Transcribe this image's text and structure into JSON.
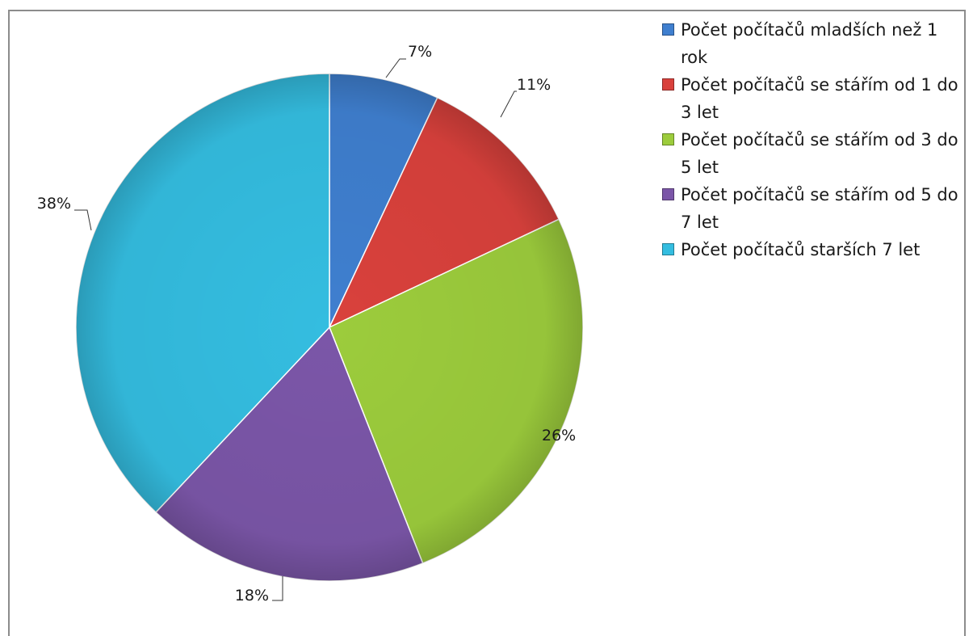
{
  "chart_data": {
    "type": "pie",
    "title": "",
    "legend_position": "top-right",
    "slices": [
      {
        "label": "Počet počítačů mladších než 1 rok",
        "value": 7,
        "data_label": "7%",
        "color": "#3f7fcf"
      },
      {
        "label": "Počet počítačů se stářím od 1 do 3 let",
        "value": 11,
        "data_label": "11%",
        "color": "#d9413c"
      },
      {
        "label": "Počet počítačů se stářím od 3 do 5 let",
        "value": 26,
        "data_label": "26%",
        "color": "#9ccc3c"
      },
      {
        "label": "Počet počítačů se stářím od 5 do 7 let",
        "value": 18,
        "data_label": "18%",
        "color": "#7b56a8"
      },
      {
        "label": "Počet počítačů starších 7 let",
        "value": 38,
        "data_label": "38%",
        "color": "#34bde0"
      }
    ]
  }
}
